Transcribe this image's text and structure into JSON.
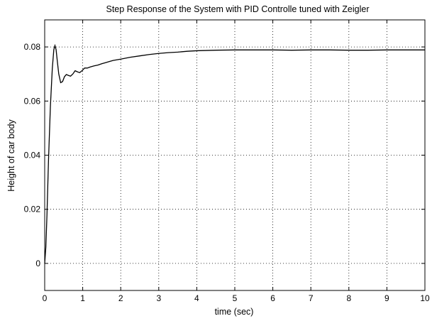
{
  "chart_data": {
    "type": "line",
    "title": "Step Response of the System with PID Controlle tuned with Zeigler",
    "xlabel": "time (sec)",
    "ylabel": "Height of car body",
    "xlim": [
      0,
      10
    ],
    "ylim": [
      -0.01,
      0.09
    ],
    "xticks": [
      0,
      1,
      2,
      3,
      4,
      5,
      6,
      7,
      8,
      9,
      10
    ],
    "yticks": [
      0,
      0.02,
      0.04,
      0.06,
      0.08
    ],
    "ytick_labels": [
      "0",
      "0.02",
      "0.04",
      "0.06",
      "0.08"
    ],
    "grid": true,
    "line_color": "#000000",
    "series": [
      {
        "x": [
          0,
          0.03,
          0.06,
          0.1,
          0.15,
          0.2,
          0.24,
          0.27,
          0.3,
          0.33,
          0.37,
          0.42,
          0.47,
          0.52,
          0.57,
          0.62,
          0.68,
          0.74,
          0.8,
          0.86,
          0.92,
          0.98,
          1.05,
          1.12,
          1.2,
          1.3,
          1.4,
          1.5,
          1.6,
          1.7,
          1.8,
          2.0,
          2.25,
          2.5,
          2.75,
          3.0,
          3.25,
          3.5,
          3.75,
          4.0,
          4.5,
          5.0,
          5.5,
          6.0,
          6.5,
          7.0,
          7.5,
          8.0,
          8.5,
          9.0,
          9.5,
          10.0
        ],
        "y": [
          0,
          0.006,
          0.018,
          0.038,
          0.058,
          0.072,
          0.079,
          0.0805,
          0.079,
          0.075,
          0.07,
          0.0668,
          0.0672,
          0.069,
          0.0698,
          0.0695,
          0.0692,
          0.07,
          0.0712,
          0.0708,
          0.0705,
          0.0712,
          0.0722,
          0.0722,
          0.0726,
          0.073,
          0.0733,
          0.0738,
          0.0742,
          0.0746,
          0.075,
          0.0755,
          0.0762,
          0.0767,
          0.0772,
          0.0776,
          0.0779,
          0.0781,
          0.0784,
          0.0786,
          0.0788,
          0.0789,
          0.0789,
          0.0789,
          0.0788,
          0.0789,
          0.0789,
          0.0788,
          0.0788,
          0.0789,
          0.0789,
          0.0789
        ]
      }
    ]
  }
}
